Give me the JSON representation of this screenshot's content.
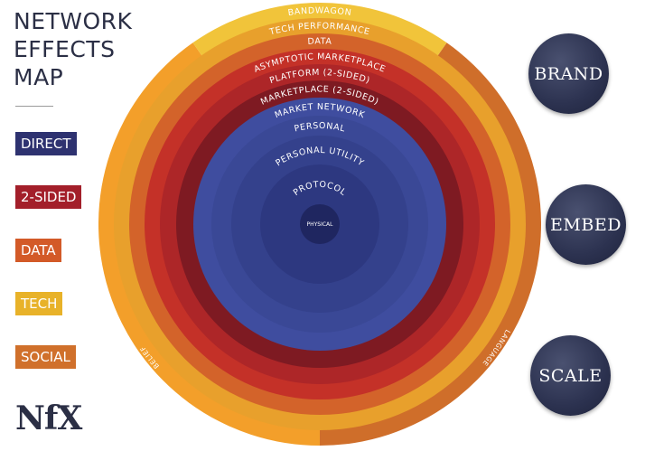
{
  "title": {
    "line1": "NETWORK",
    "line2": "EFFECTS",
    "line3": "MAP"
  },
  "legend": [
    {
      "label": "DIRECT",
      "color": "#2e3270"
    },
    {
      "label": "2-SIDED",
      "color": "#a31f2a"
    },
    {
      "label": "DATA",
      "color": "#d35a28"
    },
    {
      "label": "TECH",
      "color": "#e8b229"
    },
    {
      "label": "SOCIAL",
      "color": "#d0702b"
    }
  ],
  "logo": "NfX",
  "diagram": {
    "rings": [
      {
        "label": "BANDWAGON",
        "color": "#f1c43a"
      },
      {
        "label": "TECH PERFORMANCE",
        "color": "#e8a02c"
      },
      {
        "label": "DATA",
        "color": "#d3632a"
      },
      {
        "label": "ASYMPTOTIC MARKETPLACE",
        "color": "#c43128"
      },
      {
        "label": "PLATFORM (2-SIDED)",
        "color": "#ad2628"
      },
      {
        "label": "MARKETPLACE (2-SIDED)",
        "color": "#7e1a22"
      },
      {
        "label": "MARKET NETWORK",
        "color": "#3f4d9f"
      },
      {
        "label": "PERSONAL",
        "color": "#3a4896"
      },
      {
        "label": "PERSONAL UTILITY",
        "color": "#34418c"
      },
      {
        "label": "PROTOCOL",
        "color": "#2d3880"
      },
      {
        "label": "PHYSICAL",
        "color": "#1f2660"
      }
    ],
    "outer_left_label": "BELIEF",
    "outer_right_label": "LANGUAGE",
    "outer_left_color": "#f39f2a",
    "outer_right_color": "#cf6e2a"
  },
  "pills": [
    {
      "label": "BRAND"
    },
    {
      "label": "EMBED"
    },
    {
      "label": "SCALE"
    }
  ]
}
